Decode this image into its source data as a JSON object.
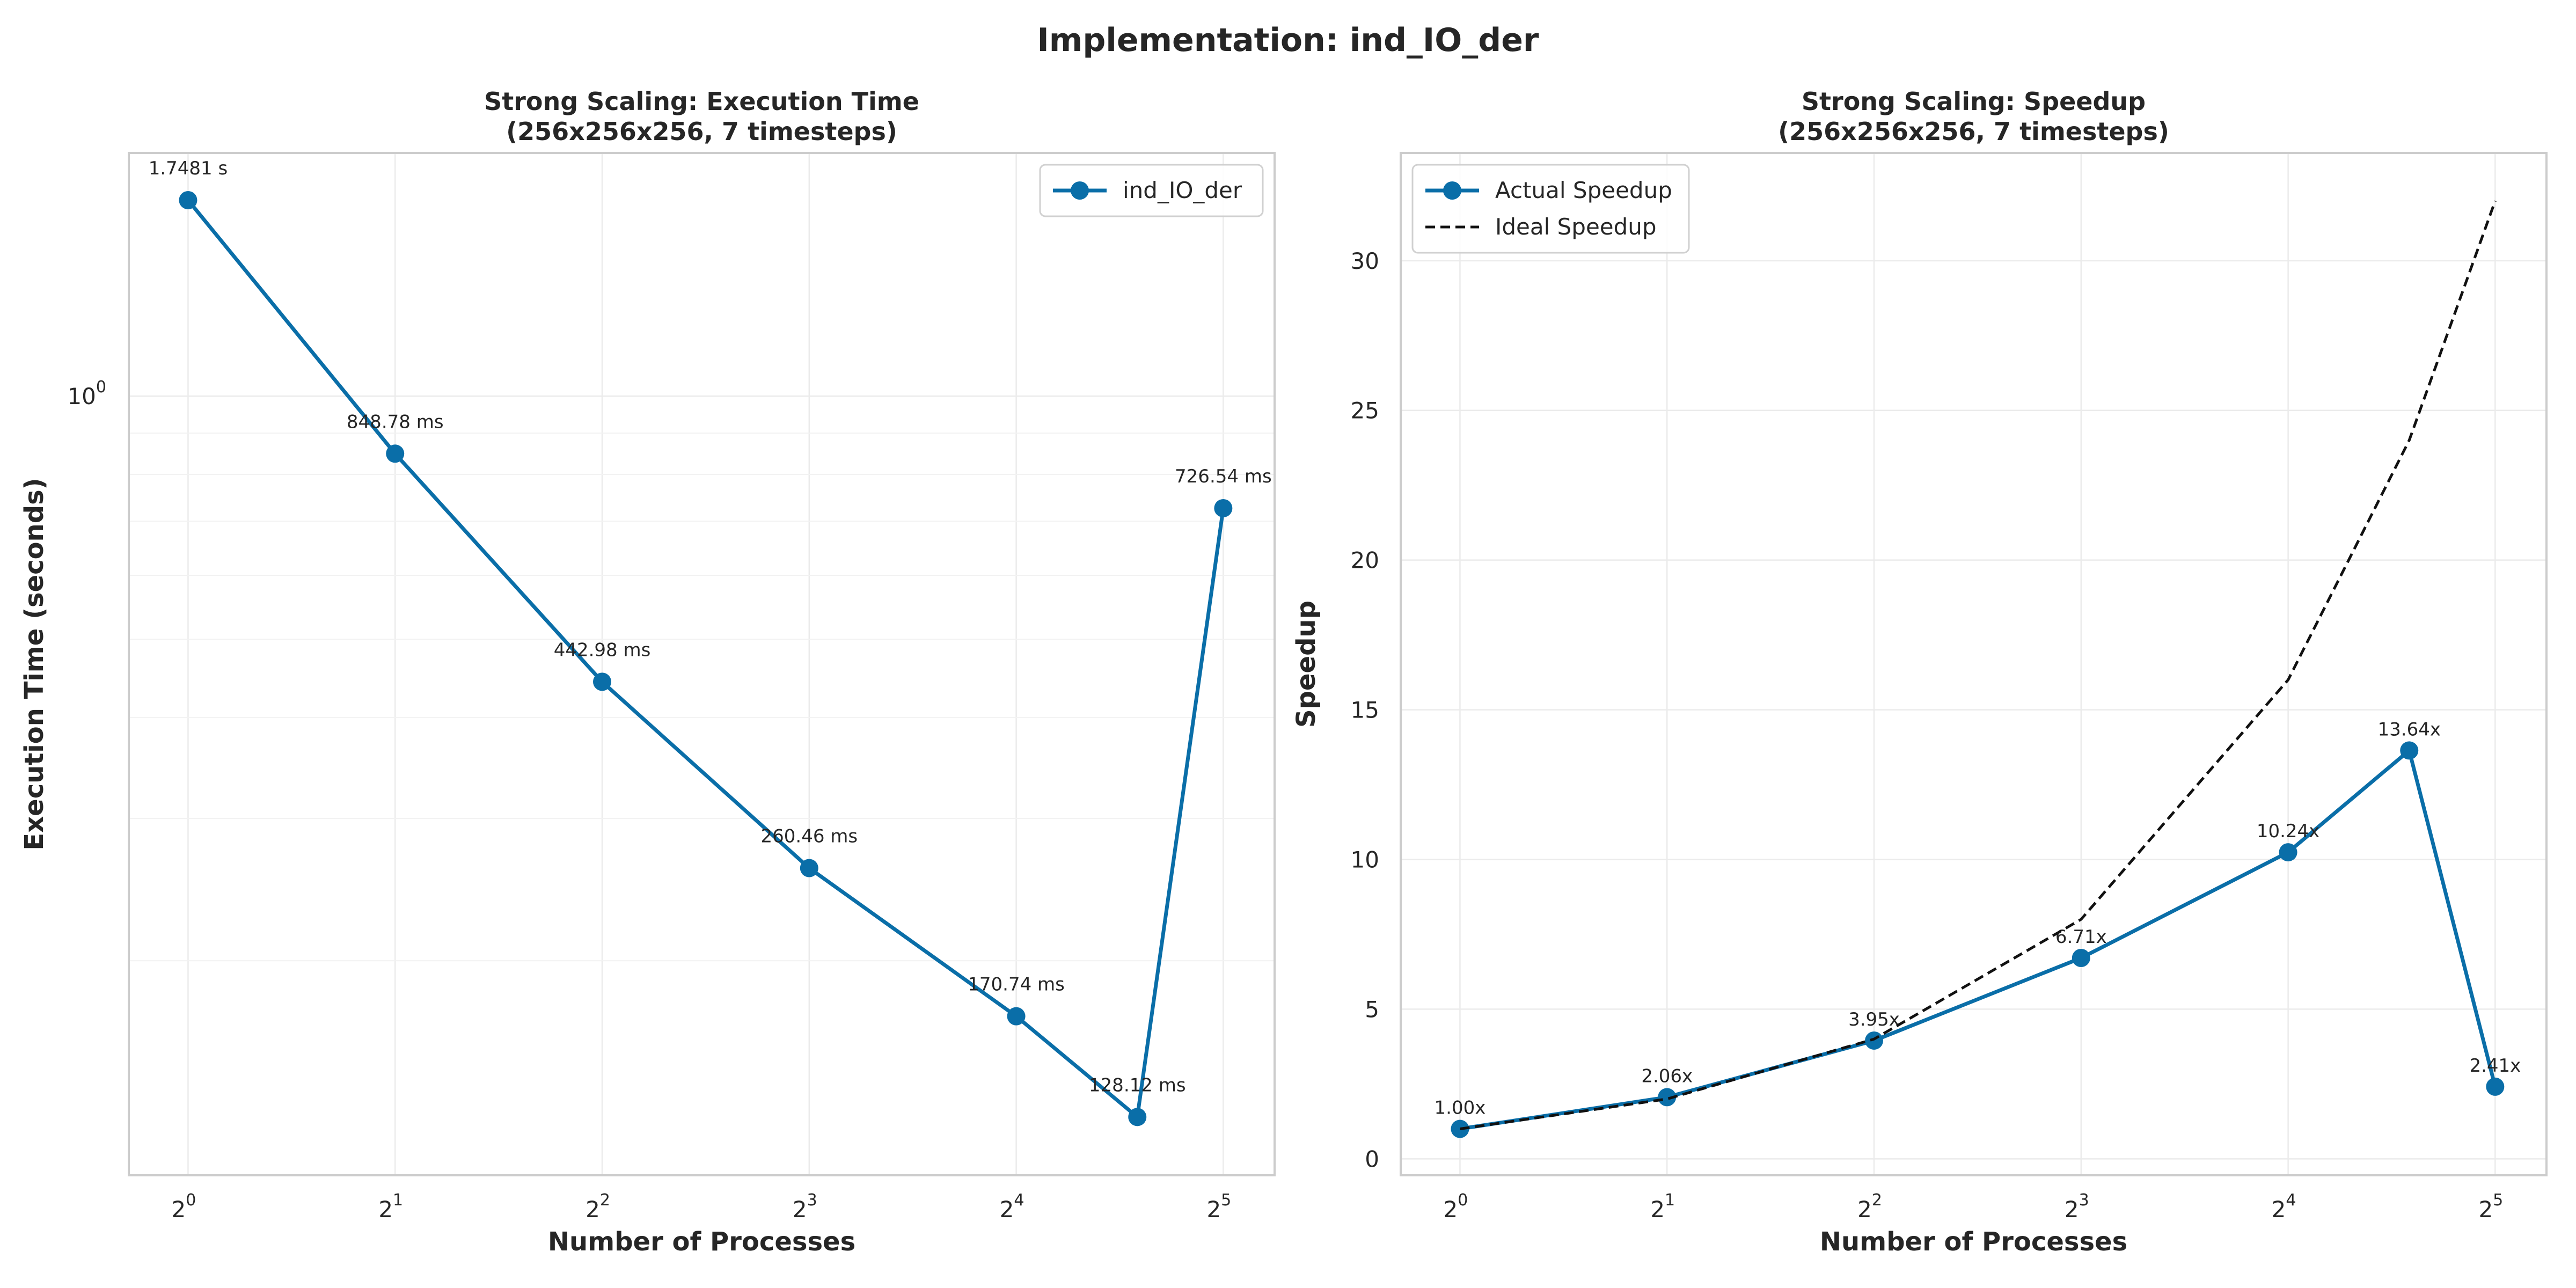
{
  "figure": {
    "suptitle": "Implementation: ind_IO_der",
    "series_color": "#0a6ea8",
    "ideal_color": "#111111"
  },
  "chart_data": [
    {
      "type": "line",
      "title_lines": [
        "Strong Scaling: Execution Time",
        "(256x256x256, 7 timesteps)"
      ],
      "xlabel": "Number of Processes",
      "ylabel": "Execution Time (seconds)",
      "xscale": "log2",
      "yscale": "log10",
      "xlim": [
        0.82,
        38
      ],
      "ylim": [
        0.1085,
        2.0
      ],
      "x_ticks": [
        {
          "base": "2",
          "exp": "0",
          "value": 1
        },
        {
          "base": "2",
          "exp": "1",
          "value": 2
        },
        {
          "base": "2",
          "exp": "2",
          "value": 4
        },
        {
          "base": "2",
          "exp": "3",
          "value": 8
        },
        {
          "base": "2",
          "exp": "4",
          "value": 16
        },
        {
          "base": "2",
          "exp": "5",
          "value": 32
        }
      ],
      "y_ticks": [
        {
          "base": "10",
          "exp": "0",
          "value": 1
        }
      ],
      "grid": true,
      "legend_position": "top-right",
      "series": [
        {
          "name": "ind_IO_der",
          "x": [
            1,
            2,
            4,
            8,
            16,
            24,
            32
          ],
          "y": [
            1.7481,
            0.84878,
            0.44298,
            0.26046,
            0.17074,
            0.12812,
            0.72654
          ],
          "labels": [
            "1.7481 s",
            "848.78 ms",
            "442.98 ms",
            "260.46 ms",
            "170.74 ms",
            "128.12 ms",
            "726.54 ms"
          ]
        }
      ]
    },
    {
      "type": "line",
      "title_lines": [
        "Strong Scaling: Speedup",
        "(256x256x256, 7 timesteps)"
      ],
      "xlabel": "Number of Processes",
      "ylabel": "Speedup",
      "xscale": "log2",
      "yscale": "linear",
      "xlim": [
        0.82,
        38
      ],
      "ylim": [
        -0.55,
        33.6
      ],
      "x_ticks": [
        {
          "base": "2",
          "exp": "0",
          "value": 1
        },
        {
          "base": "2",
          "exp": "1",
          "value": 2
        },
        {
          "base": "2",
          "exp": "2",
          "value": 4
        },
        {
          "base": "2",
          "exp": "3",
          "value": 8
        },
        {
          "base": "2",
          "exp": "4",
          "value": 16
        },
        {
          "base": "2",
          "exp": "5",
          "value": 32
        }
      ],
      "y_ticks": [
        {
          "label": "0",
          "value": 0
        },
        {
          "label": "5",
          "value": 5
        },
        {
          "label": "10",
          "value": 10
        },
        {
          "label": "15",
          "value": 15
        },
        {
          "label": "20",
          "value": 20
        },
        {
          "label": "25",
          "value": 25
        },
        {
          "label": "30",
          "value": 30
        }
      ],
      "grid": true,
      "legend_position": "top-left",
      "series": [
        {
          "name": "Actual Speedup",
          "x": [
            1,
            2,
            4,
            8,
            16,
            24,
            32
          ],
          "y": [
            1.0,
            2.06,
            3.95,
            6.71,
            10.24,
            13.64,
            2.41
          ],
          "labels": [
            "1.00x",
            "2.06x",
            "3.95x",
            "6.71x",
            "10.24x",
            "13.64x",
            "2.41x"
          ]
        },
        {
          "name": "Ideal Speedup",
          "x": [
            1,
            2,
            4,
            8,
            16,
            24,
            32
          ],
          "y": [
            1,
            2,
            4,
            8,
            16,
            24,
            32
          ],
          "dashed": true
        }
      ]
    }
  ]
}
